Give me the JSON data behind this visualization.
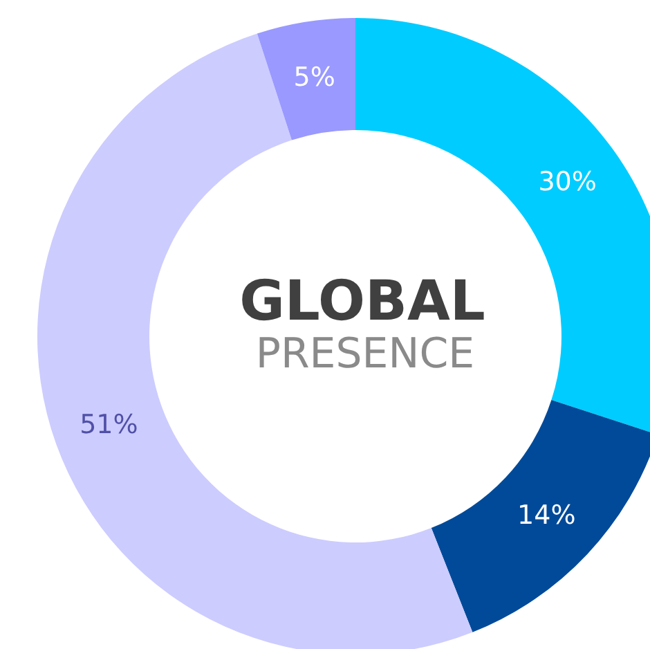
{
  "chart_data": {
    "type": "donut",
    "title": "GLOBAL",
    "subtitle": "PRESENCE",
    "categories": [
      null,
      null,
      null,
      null
    ],
    "values": [
      30,
      14,
      51,
      5
    ],
    "colors": [
      "#00ccff",
      "#004a99",
      "#ccccff",
      "#9999ff"
    ],
    "value_labels": [
      "30%",
      "14%",
      "51%",
      "5%"
    ]
  }
}
